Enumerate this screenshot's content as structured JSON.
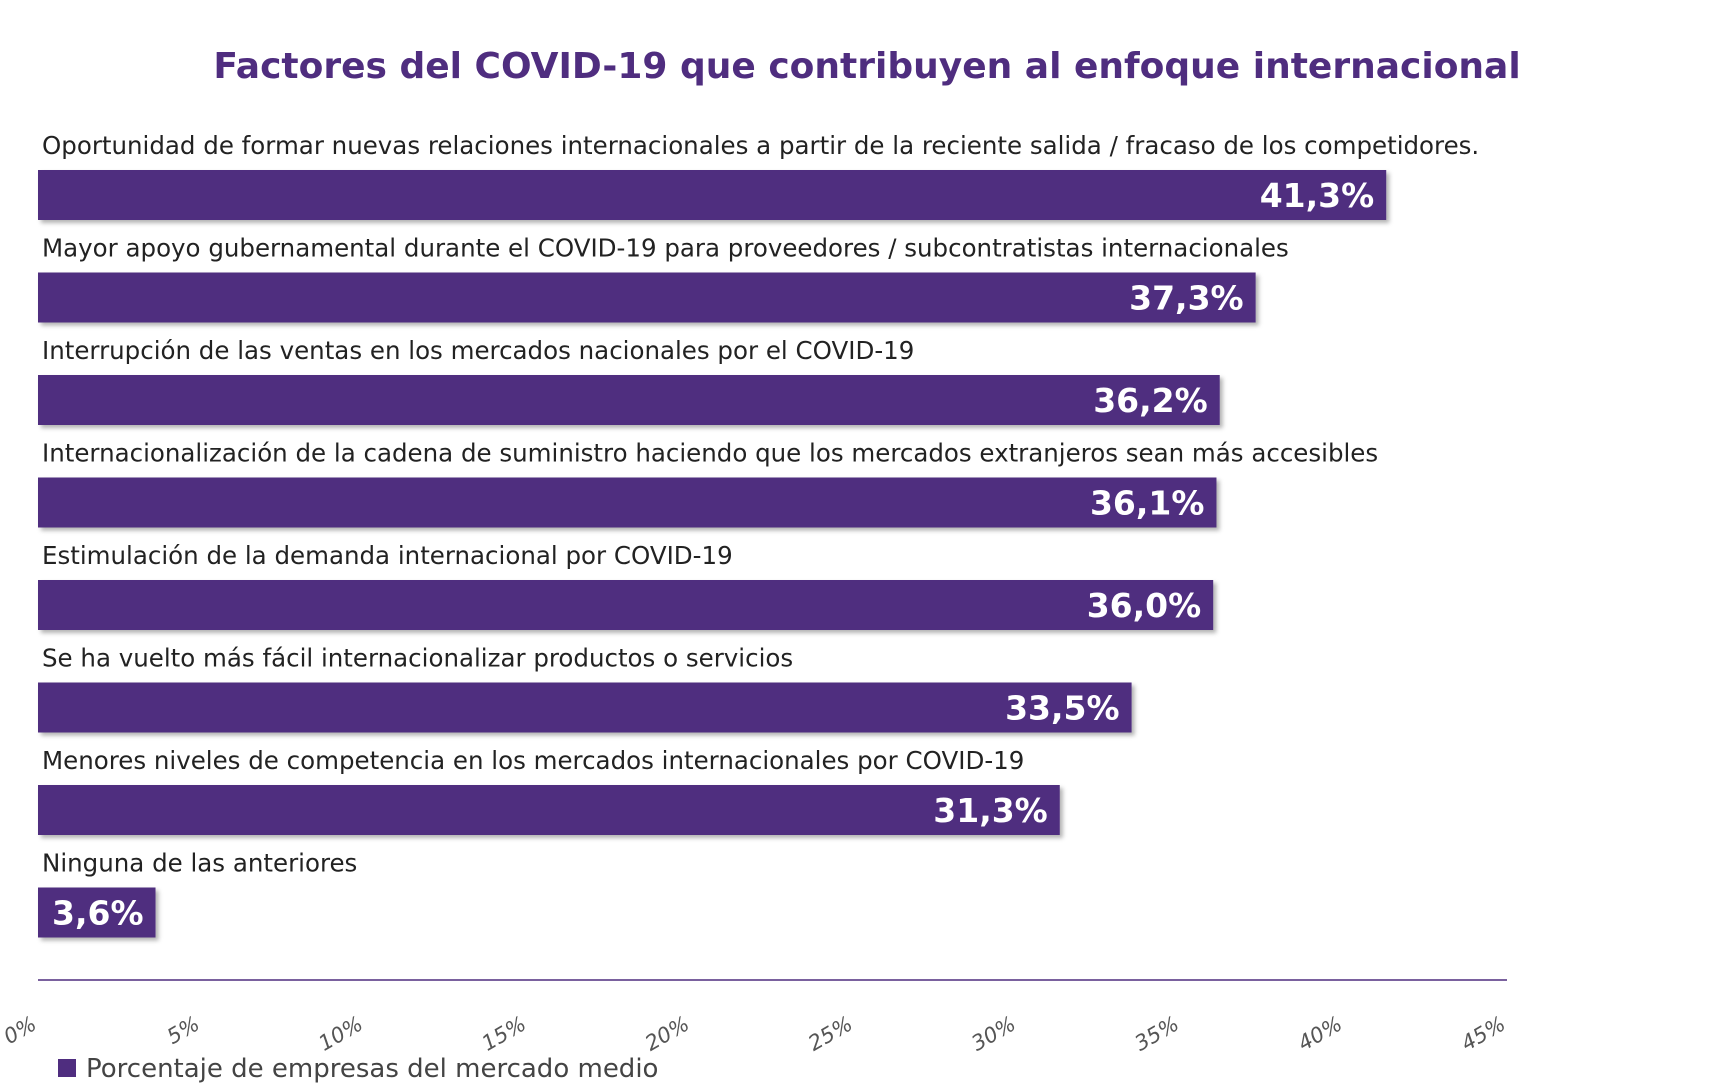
{
  "chart_data": {
    "type": "bar",
    "orientation": "horizontal",
    "title": "Factores del COVID-19 que contribuyen al enfoque internacional",
    "categories": [
      "Oportunidad de formar nuevas relaciones internacionales a partir de la reciente salida / fracaso de los competidores.",
      "Mayor apoyo gubernamental durante el COVID-19 para proveedores / subcontratistas internacionales",
      "Interrupción de las ventas en los mercados nacionales por el COVID-19",
      "Internacionalización de la cadena de suministro haciendo que los mercados extranjeros sean más accesibles",
      "Estimulación de la demanda internacional por COVID-19",
      "Se ha vuelto más fácil internacionalizar productos o servicios",
      "Menores niveles de competencia en los mercados internacionales por COVID-19",
      "Ninguna de las anteriores"
    ],
    "series": [
      {
        "name": "Porcentaje de empresas del mercado medio",
        "values": [
          41.3,
          37.3,
          36.2,
          36.1,
          36.0,
          33.5,
          31.3,
          3.6
        ],
        "labels": [
          "41,3%",
          "37,3%",
          "36,2%",
          "36,1%",
          "36,0%",
          "33,5%",
          "31,3%",
          "3,6%"
        ]
      }
    ],
    "xlim": [
      0,
      45
    ],
    "xticks": [
      "0%",
      "5%",
      "10%",
      "15%",
      "20%",
      "25%",
      "30%",
      "35%",
      "40%",
      "45%"
    ],
    "grid": false,
    "legend_position": "bottom-left",
    "colors": {
      "bar": "#4f2d7f",
      "title": "#4f2d7f",
      "axis": "#4f2d7f"
    }
  }
}
